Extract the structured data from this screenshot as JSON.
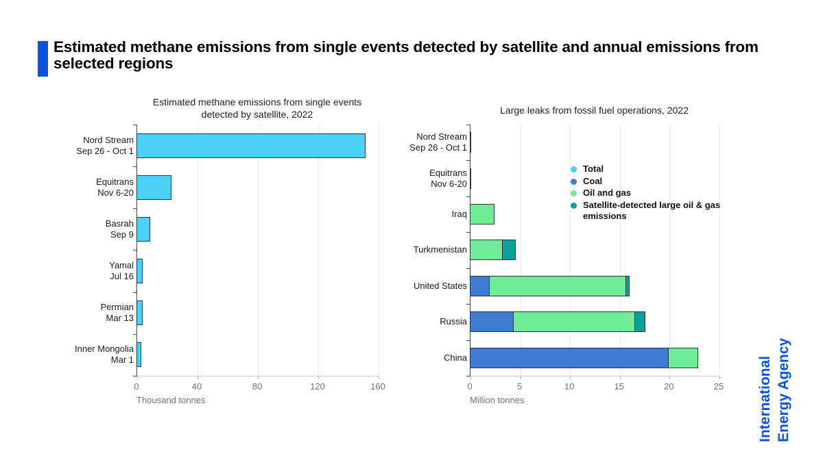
{
  "header": {
    "title": "Estimated methane emissions from single events detected by satellite and annual emissions from\nselected regions"
  },
  "branding": {
    "logo": "International\nEnergy Agency"
  },
  "colors": {
    "accent_blue": "#0B52DC",
    "total_cyan": "#4BD0F8",
    "coal_blue": "#3D7CD2",
    "oil_gas_green": "#6FEC99",
    "satellite_teal": "#0DA09A",
    "grid_line": "#E8E8E8",
    "axis_text": "#737373"
  },
  "chart_data": [
    {
      "type": "bar",
      "orientation": "horizontal",
      "title": "Estimated methane emissions from single events\ndetected by satellite, 2022",
      "xlabel": "Thousand tonnes",
      "xlim": [
        0,
        160
      ],
      "xticks": [
        "0",
        "40",
        "80",
        "120",
        "160"
      ],
      "grid": true,
      "categories": [
        "Nord Stream\nSep 26 - Oct 1",
        "Equitrans\nNov 6-20",
        "Basrah\nSep 9",
        "Yamal\nJul 16",
        "Permian\nMar 13",
        "Inner Mongolia\nMar 1"
      ],
      "values": [
        152,
        23,
        9,
        4.2,
        4,
        3.3
      ],
      "bar_color": "#4BD0F8"
    },
    {
      "type": "stacked-bar",
      "orientation": "horizontal",
      "title": "Large leaks from fossil fuel operations, 2022",
      "xlabel": "Million tonnes",
      "xlim": [
        0,
        25
      ],
      "xticks": [
        "0",
        "5",
        "10",
        "15",
        "20",
        "25"
      ],
      "grid": true,
      "legend_position": "inside top-right",
      "categories": [
        "Nord Stream\nSep 26 - Oct 1",
        "Equitrans\nNov 6-20",
        "Iraq",
        "Turkmenistan",
        "United States",
        "Russia",
        "China"
      ],
      "series": [
        {
          "name": "Total",
          "color": "#4BD0F8",
          "values": [
            0.15,
            0.02,
            0,
            0,
            0,
            0,
            0
          ]
        },
        {
          "name": "Coal",
          "color": "#3D7CD2",
          "values": [
            0,
            0,
            0,
            0,
            2,
            4.4,
            20
          ]
        },
        {
          "name": "Oil and gas",
          "color": "#6FEC99",
          "values": [
            0,
            0,
            2.5,
            3.3,
            13.8,
            12.3,
            3
          ]
        },
        {
          "name": "Satellite-detected large oil & gas emissions",
          "color": "#0DA09A",
          "values": [
            0,
            0,
            0,
            1.4,
            0.4,
            1.1,
            0
          ]
        }
      ]
    }
  ]
}
